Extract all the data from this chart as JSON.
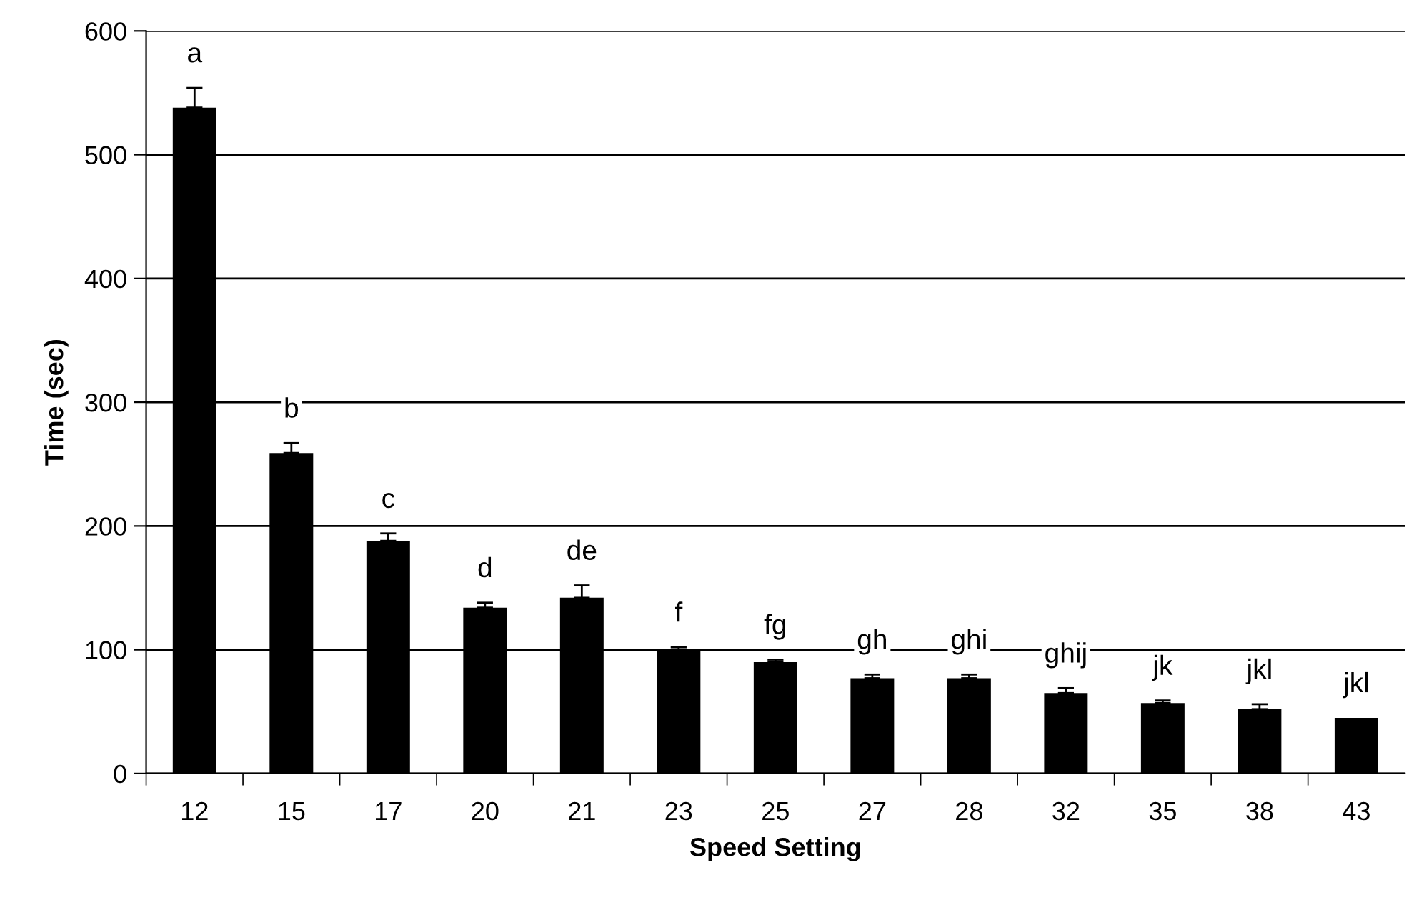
{
  "chart_data": {
    "type": "bar",
    "xlabel": "Speed Setting",
    "ylabel": "Time (sec)",
    "categories": [
      "12",
      "15",
      "17",
      "20",
      "21",
      "23",
      "25",
      "27",
      "28",
      "32",
      "35",
      "38",
      "43"
    ],
    "values": [
      538,
      259,
      188,
      134,
      142,
      100,
      90,
      77,
      77,
      65,
      57,
      52,
      45
    ],
    "errors": [
      [
        538,
        554
      ],
      [
        259,
        267
      ],
      [
        188,
        194
      ],
      [
        134,
        138
      ],
      [
        142,
        152
      ],
      [
        100,
        102
      ],
      [
        90,
        92
      ],
      [
        77,
        80
      ],
      [
        77,
        80
      ],
      [
        65,
        69
      ],
      [
        57,
        59
      ],
      [
        52,
        56
      ],
      null
    ],
    "color": "#000000",
    "ylim": [
      0,
      600
    ],
    "yticks": [
      0,
      100,
      200,
      300,
      400,
      500,
      600
    ],
    "grid": "y",
    "annotations": [
      "a",
      "b",
      "c",
      "d",
      "de",
      "f",
      "fg",
      "gh",
      "ghi",
      "ghij",
      "jk",
      "jkl",
      "jkl"
    ]
  }
}
